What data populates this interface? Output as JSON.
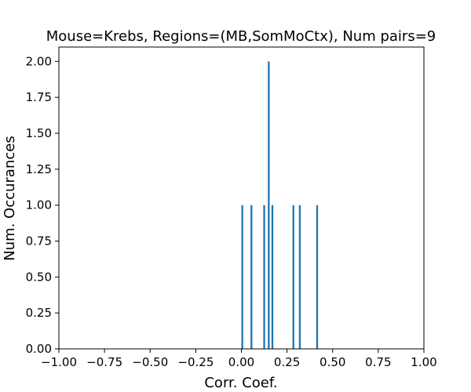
{
  "chart_data": {
    "type": "bar",
    "title": "Mouse=Krebs, Regions=(MB,SomMoCtx), Num pairs=9",
    "xlabel": "Corr. Coef.",
    "ylabel": "Num. Occurances",
    "xlim": [
      -1.0,
      1.0
    ],
    "ylim": [
      0.0,
      2.1
    ],
    "grid": false,
    "bar_color": "#1f77b4",
    "bar_width": 0.01,
    "x": [
      0.005,
      0.055,
      0.125,
      0.15,
      0.17,
      0.285,
      0.32,
      0.415
    ],
    "values": [
      1,
      1,
      1,
      2,
      1,
      1,
      1,
      1
    ],
    "x_ticks": [
      -1.0,
      -0.75,
      -0.5,
      -0.25,
      0.0,
      0.25,
      0.5,
      0.75,
      1.0
    ],
    "x_tick_labels": [
      "−1.00",
      "−0.75",
      "−0.50",
      "−0.25",
      "0.00",
      "0.25",
      "0.50",
      "0.75",
      "1.00"
    ],
    "y_ticks": [
      0.0,
      0.25,
      0.5,
      0.75,
      1.0,
      1.25,
      1.5,
      1.75,
      2.0
    ],
    "y_tick_labels": [
      "0.00",
      "0.25",
      "0.50",
      "0.75",
      "1.00",
      "1.25",
      "1.50",
      "1.75",
      "2.00"
    ]
  }
}
